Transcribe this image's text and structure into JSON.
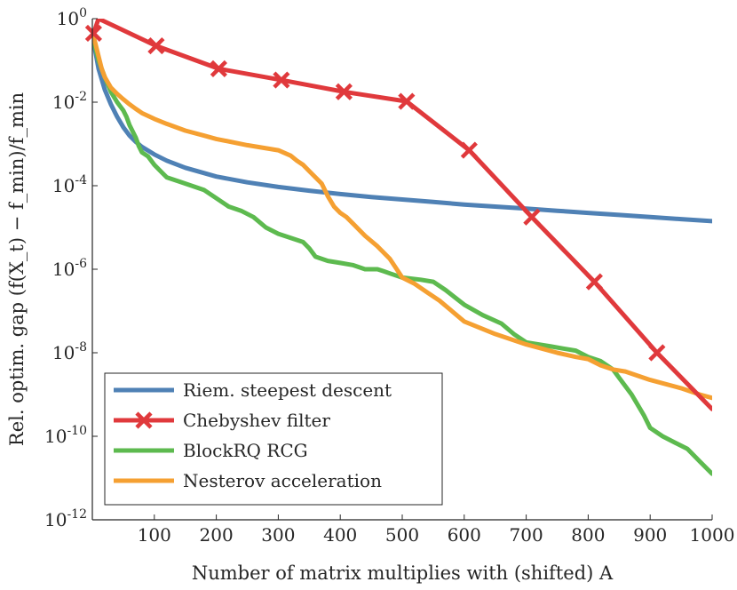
{
  "chart_data": {
    "type": "line",
    "title": "",
    "xlabel": "Number of matrix multiplies with (shifted) A",
    "ylabel": "Rel. optim. gap (f(X_t) − f_min)/f_min",
    "xlim": [
      0,
      1000
    ],
    "ylim_log10": [
      -12,
      0
    ],
    "y_scale": "log",
    "x_ticks": [
      100,
      200,
      300,
      400,
      500,
      600,
      700,
      800,
      900,
      1000
    ],
    "y_ticks": [
      {
        "exp": 0,
        "label_base": "10",
        "label_exp": "0"
      },
      {
        "exp": -2,
        "label_base": "10",
        "label_exp": "-2"
      },
      {
        "exp": -4,
        "label_base": "10",
        "label_exp": "-4"
      },
      {
        "exp": -6,
        "label_base": "10",
        "label_exp": "-6"
      },
      {
        "exp": -8,
        "label_base": "10",
        "label_exp": "-8"
      },
      {
        "exp": -10,
        "label_base": "10",
        "label_exp": "-10"
      },
      {
        "exp": -12,
        "label_base": "10",
        "label_exp": "-12"
      }
    ],
    "legend_position": "bottom-left",
    "series": [
      {
        "name": "Riem. steepest descent",
        "color": "#4f81b5",
        "marker": "none",
        "x": [
          0,
          5,
          10,
          20,
          30,
          40,
          50,
          60,
          70,
          80,
          100,
          120,
          150,
          200,
          250,
          300,
          350,
          400,
          450,
          500,
          550,
          600,
          650,
          700,
          750,
          800,
          850,
          900,
          950,
          1000
        ],
        "log10y": [
          -0.3,
          -0.8,
          -1.2,
          -1.7,
          -2.05,
          -2.35,
          -2.6,
          -2.8,
          -2.95,
          -3.07,
          -3.25,
          -3.4,
          -3.57,
          -3.78,
          -3.92,
          -4.03,
          -4.12,
          -4.2,
          -4.27,
          -4.33,
          -4.39,
          -4.45,
          -4.5,
          -4.55,
          -4.6,
          -4.65,
          -4.7,
          -4.75,
          -4.8,
          -4.85
        ]
      },
      {
        "name": "Chebyshev filter",
        "color": "#e0393c",
        "marker": "x",
        "x": [
          2,
          10,
          103,
          204,
          305,
          406,
          507,
          608,
          709,
          810,
          911,
          1000
        ],
        "log10y": [
          -0.35,
          0.0,
          -0.65,
          -1.2,
          -1.47,
          -1.75,
          -1.98,
          -3.15,
          -4.75,
          -6.3,
          -8.0,
          -9.35
        ],
        "marker_x": [
          2,
          103,
          204,
          305,
          406,
          507,
          608,
          709,
          810,
          911
        ],
        "marker_log10y": [
          -0.35,
          -0.65,
          -1.2,
          -1.47,
          -1.75,
          -1.98,
          -3.15,
          -4.75,
          -6.3,
          -8.0
        ]
      },
      {
        "name": "BlockRQ RCG",
        "color": "#5dba4f",
        "marker": "none",
        "x": [
          0,
          5,
          10,
          20,
          30,
          40,
          50,
          55,
          60,
          70,
          75,
          80,
          90,
          100,
          110,
          120,
          140,
          160,
          180,
          200,
          220,
          240,
          260,
          280,
          300,
          320,
          340,
          350,
          360,
          380,
          400,
          420,
          440,
          460,
          470,
          480,
          500,
          530,
          550,
          570,
          600,
          630,
          660,
          680,
          700,
          740,
          760,
          780,
          800,
          820,
          840,
          850,
          870,
          890,
          900,
          920,
          940,
          960,
          980,
          1000
        ],
        "log10y": [
          -0.3,
          -0.7,
          -1.0,
          -1.4,
          -1.75,
          -2.0,
          -2.2,
          -2.35,
          -2.55,
          -2.85,
          -3.05,
          -3.2,
          -3.3,
          -3.5,
          -3.65,
          -3.8,
          -3.9,
          -4.0,
          -4.1,
          -4.3,
          -4.5,
          -4.6,
          -4.75,
          -5.0,
          -5.15,
          -5.25,
          -5.35,
          -5.5,
          -5.7,
          -5.8,
          -5.85,
          -5.9,
          -6.0,
          -6.0,
          -6.05,
          -6.1,
          -6.2,
          -6.25,
          -6.3,
          -6.5,
          -6.85,
          -7.1,
          -7.3,
          -7.55,
          -7.75,
          -7.85,
          -7.9,
          -7.95,
          -8.1,
          -8.2,
          -8.4,
          -8.6,
          -9.0,
          -9.5,
          -9.8,
          -10.0,
          -10.15,
          -10.3,
          -10.6,
          -10.9
        ]
      },
      {
        "name": "Nesterov acceleration",
        "color": "#f5a032",
        "marker": "none",
        "x": [
          0,
          5,
          10,
          15,
          20,
          30,
          40,
          50,
          60,
          70,
          80,
          100,
          120,
          150,
          180,
          200,
          250,
          300,
          320,
          330,
          340,
          350,
          360,
          370,
          380,
          390,
          400,
          410,
          420,
          440,
          460,
          480,
          500,
          520,
          540,
          560,
          580,
          600,
          650,
          700,
          750,
          780,
          800,
          820,
          840,
          860,
          880,
          900,
          950,
          980,
          1000
        ],
        "log10y": [
          -0.3,
          -0.6,
          -0.9,
          -1.2,
          -1.4,
          -1.65,
          -1.8,
          -1.93,
          -2.05,
          -2.16,
          -2.26,
          -2.4,
          -2.52,
          -2.68,
          -2.8,
          -2.88,
          -3.03,
          -3.15,
          -3.28,
          -3.4,
          -3.5,
          -3.65,
          -3.8,
          -3.95,
          -4.25,
          -4.5,
          -4.65,
          -4.75,
          -4.9,
          -5.2,
          -5.45,
          -5.75,
          -6.2,
          -6.35,
          -6.55,
          -6.75,
          -7.0,
          -7.25,
          -7.55,
          -7.8,
          -8.0,
          -8.1,
          -8.15,
          -8.3,
          -8.4,
          -8.45,
          -8.55,
          -8.65,
          -8.85,
          -9.0,
          -9.08
        ]
      }
    ]
  }
}
